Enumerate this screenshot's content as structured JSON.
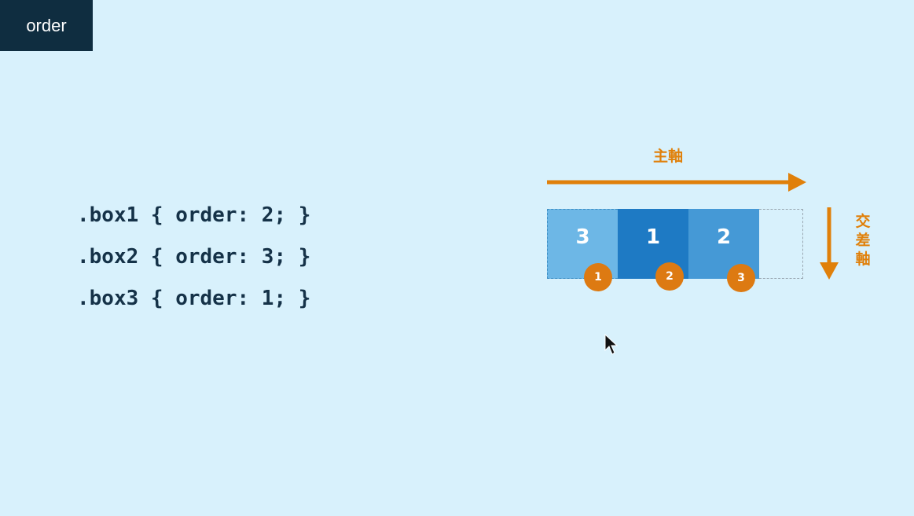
{
  "badge": {
    "label": "order"
  },
  "code_lines": [
    ".box1 { order: 2; }",
    ".box2 { order: 3; }",
    ".box3 { order: 1; }"
  ],
  "diagram": {
    "main_axis_label": "主軸",
    "cross_axis_label": [
      "交",
      "差",
      "軸"
    ],
    "boxes": [
      {
        "label": "3",
        "color": "#6db7e6"
      },
      {
        "label": "1",
        "color": "#1e7ac4"
      },
      {
        "label": "2",
        "color": "#4599d6"
      }
    ],
    "position_markers": [
      "1",
      "2",
      "3"
    ],
    "accent_color": "#e0800a"
  }
}
